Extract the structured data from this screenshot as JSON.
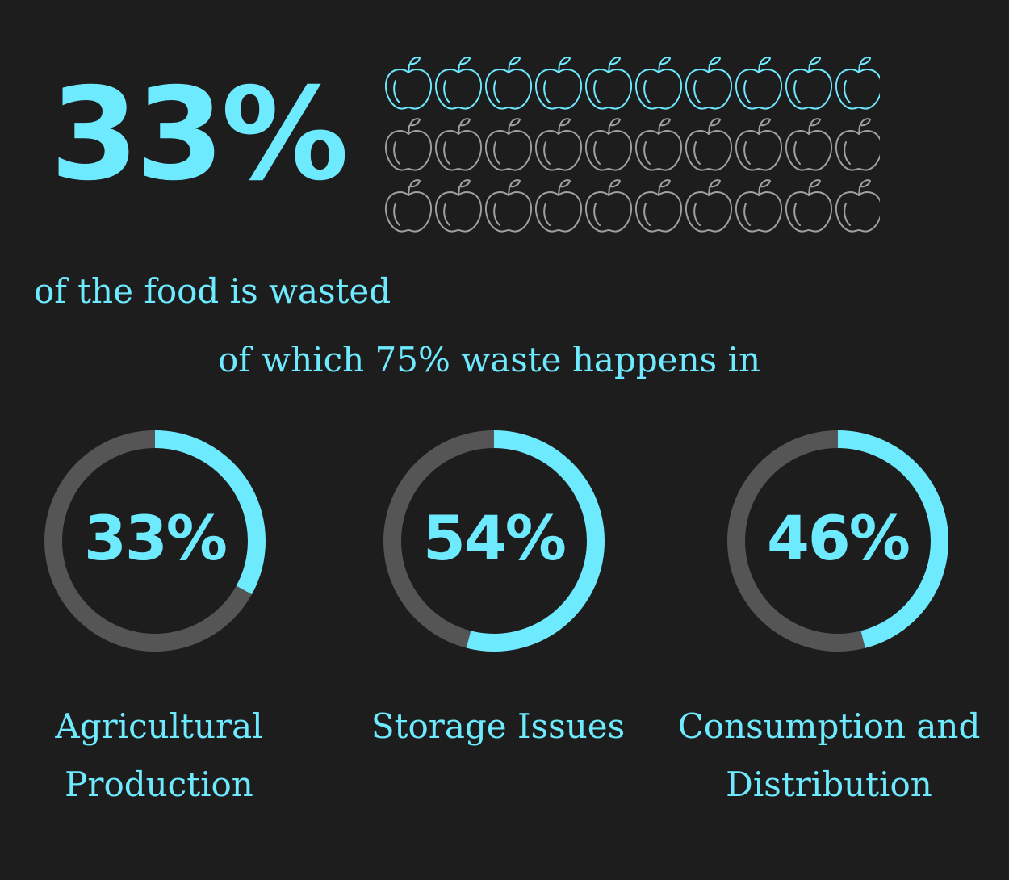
{
  "colors": {
    "background": "#1d1d1d",
    "accent": "#6eeaff",
    "track": "#555555",
    "apple_empty": "#a0a0a0"
  },
  "headline": {
    "value": "33%",
    "caption": "of the food is wasted",
    "sub_caption": "of which 75% waste happens in"
  },
  "chart_data": [
    {
      "type": "pictogram",
      "icon": "apple-icon",
      "rows": 3,
      "columns": 10,
      "total": 30,
      "highlighted": 10,
      "highlighted_fraction": 0.3333
    },
    {
      "type": "pie",
      "subtype": "donut",
      "categories": [
        "Agricultural Production",
        "Storage Issues",
        "Consumption and Distribution"
      ],
      "values": [
        33,
        54,
        46
      ],
      "unit": "%",
      "value_labels": [
        "33%",
        "54%",
        "46%"
      ],
      "labels": [
        [
          "Agricultural",
          "Production"
        ],
        [
          "Storage Issues"
        ],
        [
          "Consumption and",
          "Distribution"
        ]
      ]
    }
  ]
}
